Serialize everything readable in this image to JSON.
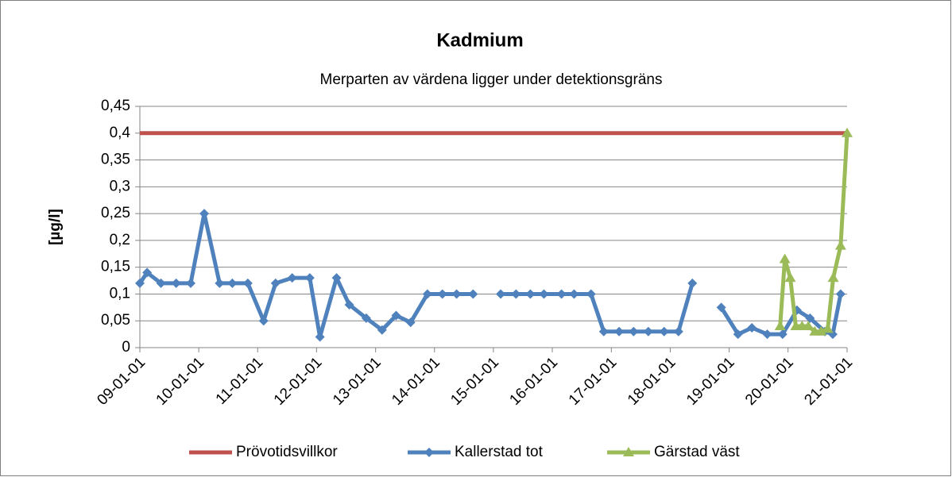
{
  "chart_data": {
    "type": "line",
    "title": "Kadmium",
    "subtitle": "Merparten av värdena ligger under detektionsgräns",
    "y_label": "[µg/l]",
    "xlim": [
      "09-01-01",
      "21-01-01"
    ],
    "xticks": [
      "09-01-01",
      "10-01-01",
      "11-01-01",
      "12-01-01",
      "13-01-01",
      "14-01-01",
      "15-01-01",
      "16-01-01",
      "17-01-01",
      "18-01-01",
      "19-01-01",
      "20-01-01",
      "21-01-01"
    ],
    "ylim": [
      0,
      0.45
    ],
    "yticks": [
      0,
      {
        "value": 0.05,
        "label": "0,05"
      },
      {
        "value": 0.1,
        "label": "0,1"
      },
      {
        "value": 0.15,
        "label": "0,15"
      },
      {
        "value": 0.2,
        "label": "0,2"
      },
      {
        "value": 0.25,
        "label": "0,25"
      },
      {
        "value": 0.3,
        "label": "0,3"
      },
      {
        "value": 0.35,
        "label": "0,35"
      },
      {
        "value": 0.4,
        "label": "0,4"
      },
      {
        "value": 0.45,
        "label": "0,45"
      }
    ],
    "grid": true,
    "legend": "bottom",
    "series": [
      {
        "name": "Prövotidsvillkor",
        "color": "#c0504d",
        "marker": "none",
        "x": [
          "09-01-01",
          "21-01-01"
        ],
        "values": [
          0.4,
          0.4
        ]
      },
      {
        "name": "Kallerstad tot",
        "color": "#4f81bd",
        "marker": "diamond",
        "x": [
          "09-01-01",
          "09-02-15",
          "09-05-12",
          "09-08-14",
          "09-11-12",
          "10-02-04",
          "10-05-10",
          "10-07-28",
          "10-11-01",
          "11-02-07",
          "11-04-22",
          "11-08-03",
          "11-11-20",
          "12-01-22",
          "12-05-04",
          "12-07-22",
          "12-11-04",
          "13-02-10",
          "13-05-08",
          "13-08-06",
          "13-11-18",
          "14-02-19",
          "14-05-18",
          "14-08-28",
          "14-12-01",
          "15-02-15",
          "15-05-21",
          "15-08-18",
          "15-11-10",
          "16-02-27",
          "16-05-15",
          "16-08-28",
          "16-11-15",
          "17-02-18",
          "17-05-19",
          "17-08-18",
          "17-11-24",
          "18-02-21",
          "18-05-18",
          "18-10-01",
          "18-11-13",
          "19-02-25",
          "19-05-22",
          "19-08-25",
          "19-11-28",
          "20-02-25",
          "20-05-16",
          "20-08-16",
          "20-10-04",
          "20-11-22"
        ],
        "values": [
          0.12,
          0.14,
          0.12,
          0.12,
          0.12,
          0.25,
          0.12,
          0.12,
          0.12,
          0.05,
          0.12,
          0.13,
          0.13,
          0.02,
          0.13,
          0.08,
          0.055,
          0.033,
          0.06,
          0.047,
          0.1,
          0.1,
          0.1,
          0.1,
          null,
          0.1,
          0.1,
          0.1,
          0.1,
          0.1,
          0.1,
          0.1,
          0.03,
          0.03,
          0.03,
          0.03,
          0.03,
          0.03,
          0.12,
          null,
          0.075,
          0.025,
          0.037,
          0.025,
          0.025,
          0.07,
          0.055,
          0.03,
          0.025,
          0.1
        ]
      },
      {
        "name": "Gärstad väst",
        "color": "#9bbb59",
        "marker": "triangle",
        "x": [
          "19-11-13",
          "19-12-12",
          "20-01-15",
          "20-02-18",
          "20-03-28",
          "20-05-06",
          "20-06-15",
          "20-07-24",
          "20-09-03",
          "20-10-07",
          "20-11-22",
          "21-01-01"
        ],
        "values": [
          0.04,
          0.165,
          0.13,
          0.04,
          0.04,
          0.04,
          0.03,
          0.03,
          0.035,
          0.13,
          0.19,
          0.4
        ]
      }
    ]
  }
}
